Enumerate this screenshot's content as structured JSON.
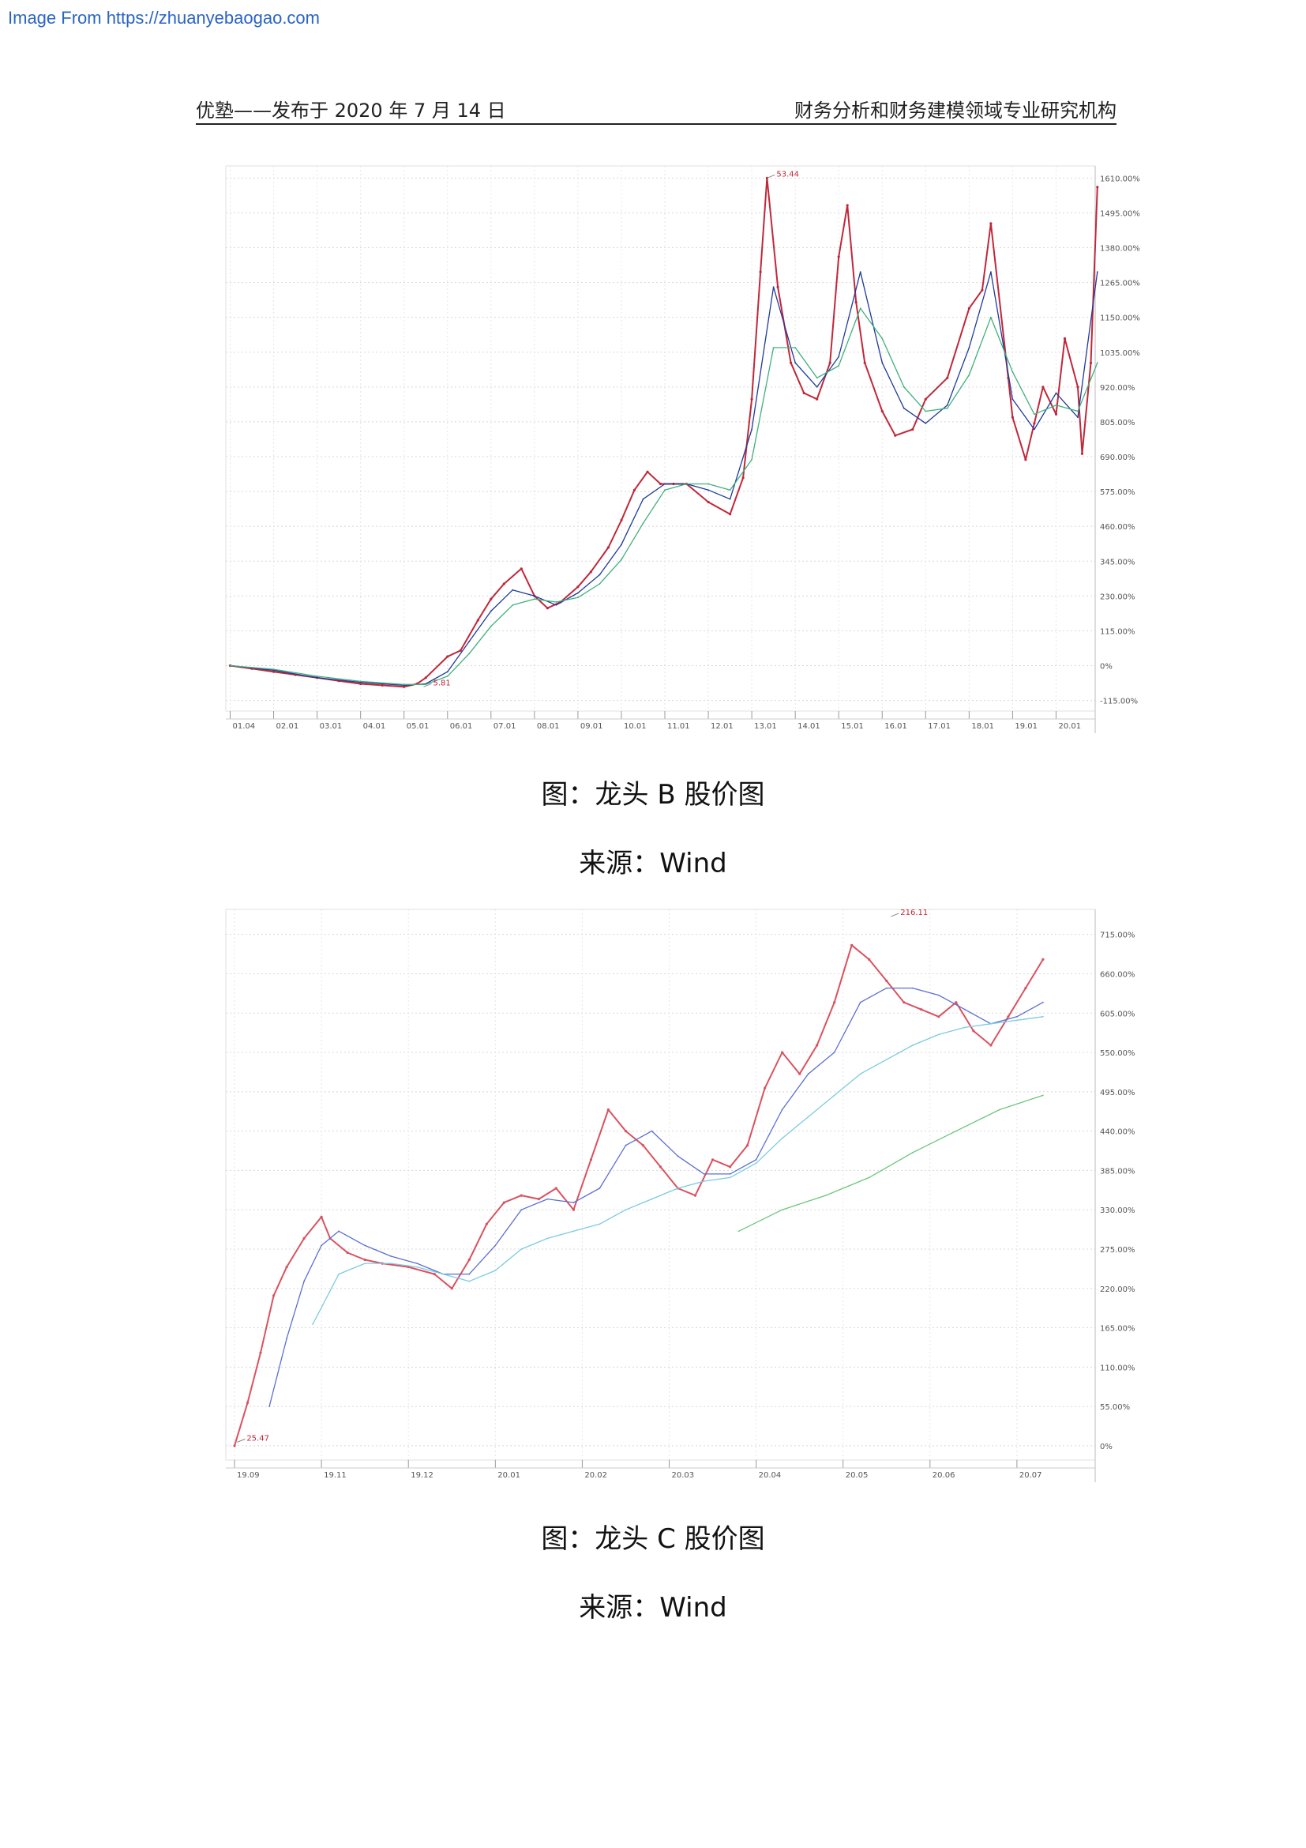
{
  "watermark": "Image From https://zhuanyebaogao.com",
  "header": {
    "left": "优塾——发布于 2020 年 7 月 14 日",
    "right": "财务分析和财务建模领域专业研究机构"
  },
  "figures": [
    {
      "caption": "图：龙头 B 股价图",
      "source": "来源：Wind",
      "chart_data": {
        "type": "line",
        "y_ticks": [
          "1610.00%",
          "1495.00%",
          "1380.00%",
          "1265.00%",
          "1150.00%",
          "1035.00%",
          "920.00%",
          "805.00%",
          "690.00%",
          "575.00%",
          "460.00%",
          "345.00%",
          "230.00%",
          "115.00%",
          "0%",
          "-115.00%"
        ],
        "x_ticks": [
          "01.04",
          "02.01",
          "03.01",
          "04.01",
          "05.01",
          "06.01",
          "07.01",
          "08.01",
          "09.01",
          "10.01",
          "11.01",
          "12.01",
          "13.01",
          "14.01",
          "15.01",
          "16.01",
          "17.01",
          "18.01",
          "19.01",
          "20.01"
        ],
        "ylim": [
          -150,
          1650
        ],
        "annotations": [
          {
            "label": "53.44",
            "x": 12.35,
            "y": 1610
          },
          {
            "label": "5.81",
            "x": 4.45,
            "y": -70
          }
        ],
        "series": [
          {
            "color": "#c0273a",
            "x": [
              0,
              0.5,
              1,
              1.5,
              2,
              2.5,
              3,
              3.5,
              4,
              4.3,
              4.5,
              5,
              5.3,
              5.7,
              6,
              6.3,
              6.7,
              7,
              7.3,
              7.6,
              8,
              8.3,
              8.7,
              9,
              9.3,
              9.6,
              9.9,
              10.2,
              10.5,
              11,
              11.5,
              11.8,
              12,
              12.2,
              12.35,
              12.6,
              12.9,
              13.2,
              13.5,
              13.8,
              14,
              14.2,
              14.4,
              14.6,
              15,
              15.3,
              15.7,
              16,
              16.5,
              17,
              17.3,
              17.5,
              17.9,
              18,
              18.3,
              18.5,
              18.7,
              19,
              19.2,
              19.5,
              19.6,
              19.8,
              19.95
            ],
            "y": [
              0,
              -10,
              -20,
              -30,
              -40,
              -50,
              -60,
              -65,
              -70,
              -60,
              -40,
              30,
              50,
              150,
              220,
              270,
              320,
              230,
              190,
              210,
              260,
              310,
              390,
              480,
              580,
              640,
              600,
              600,
              600,
              540,
              500,
              620,
              880,
              1300,
              1610,
              1250,
              1000,
              900,
              880,
              1000,
              1350,
              1520,
              1200,
              1000,
              840,
              760,
              780,
              880,
              950,
              1180,
              1240,
              1460,
              950,
              820,
              680,
              800,
              920,
              830,
              1080,
              920,
              700,
              1000,
              1580
            ]
          },
          {
            "color": "#1f3a99",
            "x": [
              0,
              1,
              2,
              3,
              4,
              4.5,
              5,
              5.5,
              6,
              6.5,
              7,
              7.5,
              8,
              8.5,
              9,
              9.5,
              10,
              10.5,
              11,
              11.5,
              12,
              12.5,
              13,
              13.5,
              14,
              14.5,
              15,
              15.5,
              16,
              16.5,
              17,
              17.5,
              18,
              18.5,
              19,
              19.5,
              19.95
            ],
            "y": [
              0,
              -15,
              -40,
              -55,
              -65,
              -60,
              -20,
              80,
              180,
              250,
              230,
              200,
              240,
              300,
              400,
              550,
              600,
              600,
              580,
              550,
              780,
              1250,
              1000,
              920,
              1020,
              1300,
              1000,
              850,
              800,
              860,
              1050,
              1300,
              880,
              780,
              900,
              820,
              1300
            ]
          },
          {
            "color": "#3fb07a",
            "x": [
              0,
              1,
              2,
              3,
              4,
              4.5,
              5,
              5.5,
              6,
              6.5,
              7,
              7.5,
              8,
              8.5,
              9,
              9.5,
              10,
              10.5,
              11,
              11.5,
              12,
              12.5,
              13,
              13.5,
              14,
              14.5,
              15,
              15.5,
              16,
              16.5,
              17,
              17.5,
              18,
              18.5,
              19,
              19.5,
              19.95
            ],
            "y": [
              0,
              -12,
              -35,
              -52,
              -62,
              -62,
              -35,
              40,
              130,
              200,
              220,
              210,
              225,
              270,
              350,
              470,
              580,
              600,
              600,
              580,
              680,
              1050,
              1050,
              950,
              990,
              1180,
              1080,
              920,
              840,
              850,
              960,
              1150,
              970,
              830,
              860,
              840,
              1000
            ]
          }
        ]
      }
    },
    {
      "caption": "图：龙头 C 股价图",
      "source": "来源：Wind",
      "chart_data": {
        "type": "line",
        "y_ticks": [
          "715.00%",
          "660.00%",
          "605.00%",
          "550.00%",
          "495.00%",
          "440.00%",
          "385.00%",
          "330.00%",
          "275.00%",
          "220.00%",
          "165.00%",
          "110.00%",
          "55.00%",
          "0%"
        ],
        "x_ticks": [
          "19.09",
          "19.11",
          "19.12",
          "20.01",
          "20.02",
          "20.03",
          "20.04",
          "20.05",
          "20.06",
          "20.07"
        ],
        "ylim": [
          -20,
          750
        ],
        "annotations": [
          {
            "label": "216.11",
            "x": 7.55,
            "y": 740
          },
          {
            "label": "25.47",
            "x": 0.03,
            "y": 5
          }
        ],
        "series": [
          {
            "color": "#d9525f",
            "x": [
              0,
              0.15,
              0.3,
              0.45,
              0.6,
              0.8,
              1.0,
              1.1,
              1.3,
              1.5,
              1.7,
              2.0,
              2.3,
              2.5,
              2.7,
              2.9,
              3.1,
              3.3,
              3.5,
              3.7,
              3.9,
              4.1,
              4.3,
              4.5,
              4.7,
              4.9,
              5.1,
              5.3,
              5.5,
              5.7,
              5.9,
              6.1,
              6.3,
              6.5,
              6.7,
              6.9,
              7.1,
              7.3,
              7.5,
              7.7,
              7.9,
              8.1,
              8.3,
              8.5,
              8.7,
              8.9,
              9.1,
              9.3
            ],
            "y": [
              0,
              60,
              130,
              210,
              250,
              290,
              320,
              290,
              270,
              260,
              255,
              250,
              240,
              220,
              260,
              310,
              340,
              350,
              345,
              360,
              330,
              400,
              470,
              440,
              420,
              390,
              360,
              350,
              400,
              390,
              420,
              500,
              550,
              520,
              560,
              620,
              700,
              680,
              650,
              620,
              610,
              600,
              620,
              580,
              560,
              600,
              640,
              680
            ]
          },
          {
            "color": "#5b6fd3",
            "x": [
              0.4,
              0.6,
              0.8,
              1.0,
              1.2,
              1.5,
              1.8,
              2.1,
              2.4,
              2.7,
              3.0,
              3.3,
              3.6,
              3.9,
              4.2,
              4.5,
              4.8,
              5.1,
              5.4,
              5.7,
              6.0,
              6.3,
              6.6,
              6.9,
              7.2,
              7.5,
              7.8,
              8.1,
              8.4,
              8.7,
              9.0,
              9.3
            ],
            "y": [
              55,
              150,
              230,
              280,
              300,
              280,
              265,
              255,
              240,
              240,
              280,
              330,
              345,
              340,
              360,
              420,
              440,
              405,
              380,
              380,
              400,
              470,
              520,
              550,
              620,
              640,
              640,
              630,
              610,
              590,
              600,
              620
            ]
          },
          {
            "color": "#7ccbe0",
            "x": [
              0.9,
              1.2,
              1.5,
              1.8,
              2.1,
              2.4,
              2.7,
              3.0,
              3.3,
              3.6,
              3.9,
              4.2,
              4.5,
              4.8,
              5.1,
              5.4,
              5.7,
              6.0,
              6.3,
              6.6,
              6.9,
              7.2,
              7.5,
              7.8,
              8.1,
              8.4,
              8.7,
              9.0,
              9.3
            ],
            "y": [
              170,
              240,
              255,
              255,
              250,
              240,
              230,
              245,
              275,
              290,
              300,
              310,
              330,
              345,
              360,
              370,
              375,
              395,
              430,
              460,
              490,
              520,
              540,
              560,
              575,
              585,
              590,
              595,
              600
            ]
          },
          {
            "color": "#6cc67a",
            "x": [
              5.8,
              6.3,
              6.8,
              7.3,
              7.8,
              8.3,
              8.8,
              9.3
            ],
            "y": [
              300,
              330,
              350,
              375,
              410,
              440,
              470,
              490
            ]
          }
        ]
      }
    }
  ]
}
